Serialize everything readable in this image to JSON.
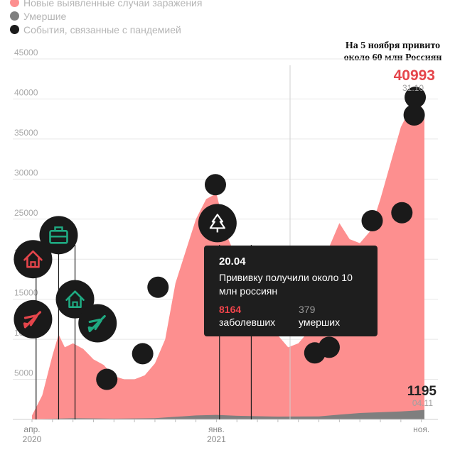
{
  "legend": {
    "cases": "Новые выявленные случаи заражения",
    "deaths": "Умершие",
    "events": "События, связанные с пандемией"
  },
  "note": "На 5 ноября привито около 60 млн Россиян",
  "colors": {
    "cases": "#fd8f8f",
    "deaths": "#7f7f7f",
    "events": "#1a1a1a",
    "accent": "#e5454b",
    "icon_red": "#e5454b",
    "icon_green": "#1faa82",
    "icon_white": "#ffffff"
  },
  "tooltip": {
    "date": "20.04",
    "text": "Прививку получили около 10 млн россиян",
    "cases": "8164",
    "cases_label": "заболевших",
    "deaths": "379",
    "deaths_label": "умерших"
  },
  "chart_data": {
    "type": "area",
    "ylim": [
      0,
      45000
    ],
    "y_ticks": [
      {
        "v": 5000,
        "label": "5000"
      },
      {
        "v": 10000,
        "label": "10000"
      },
      {
        "v": 15000,
        "label": "15000"
      },
      {
        "v": 20000,
        "label": "20000"
      },
      {
        "v": 25000,
        "label": "25000"
      },
      {
        "v": 30000,
        "label": "30000"
      },
      {
        "v": 35000,
        "label": "35000"
      },
      {
        "v": 40000,
        "label": "40000"
      },
      {
        "v": 45000,
        "label": "45000"
      }
    ],
    "x_ticks": [
      {
        "x": 0,
        "label": "апр.",
        "sub": "2020"
      },
      {
        "x": 9,
        "label": "янв.",
        "sub": "2021"
      },
      {
        "x": 19,
        "label": "ноя.",
        "sub": ""
      }
    ],
    "x_range": [
      0,
      19.15
    ],
    "series": [
      {
        "name": "Новые выявленные случаи заражения",
        "x": [
          0,
          0.5,
          1,
          1.3,
          1.6,
          2,
          2.5,
          3,
          3.5,
          4,
          4.5,
          5,
          5.5,
          6,
          6.5,
          7,
          7.5,
          8,
          8.5,
          9,
          9.5,
          10,
          10.5,
          11,
          11.5,
          12,
          12.5,
          13,
          13.5,
          14,
          14.5,
          15,
          15.5,
          16,
          16.5,
          17,
          17.5,
          18,
          18.3,
          18.6,
          19,
          19.15
        ],
        "values": [
          500,
          3000,
          8000,
          10600,
          9000,
          9500,
          8800,
          7500,
          6800,
          5400,
          5000,
          5000,
          5500,
          7000,
          10000,
          17000,
          21000,
          25000,
          27500,
          28200,
          23000,
          20000,
          17000,
          14000,
          11500,
          10500,
          9000,
          9500,
          11000,
          15000,
          21500,
          24500,
          22500,
          22000,
          23500,
          27500,
          32000,
          36500,
          38000,
          40993,
          39000,
          38000
        ]
      },
      {
        "name": "Умершие",
        "x": [
          0,
          2,
          4,
          6,
          8,
          9,
          10,
          12,
          14,
          15,
          16,
          17,
          18,
          19,
          19.15
        ],
        "values": [
          20,
          150,
          100,
          150,
          500,
          570,
          450,
          350,
          380,
          600,
          800,
          900,
          1000,
          1150,
          1195
        ]
      }
    ],
    "labels": {
      "peak_value": "40993",
      "peak_date": "31.10",
      "last_value": "1195",
      "last_date": "04.11"
    },
    "event_lines": [
      0.2,
      1.3,
      2.1,
      9.15,
      10.7
    ],
    "events": [
      {
        "x": 0.05,
        "y": 20000,
        "icon": "house-icon",
        "color": "red"
      },
      {
        "x": 0.05,
        "y": 12500,
        "icon": "plane-icon",
        "color": "red"
      },
      {
        "x": 1.3,
        "y": 23000,
        "icon": "briefcase-icon",
        "color": "green"
      },
      {
        "x": 2.1,
        "y": 15000,
        "icon": "house-icon",
        "color": "green"
      },
      {
        "x": 3.2,
        "y": 12000,
        "icon": "plane-icon",
        "color": "green"
      },
      {
        "x": 3.65,
        "y": 5000,
        "icon": "none",
        "color": ""
      },
      {
        "x": 5.4,
        "y": 8200,
        "icon": "none",
        "color": ""
      },
      {
        "x": 6.15,
        "y": 16500,
        "icon": "none",
        "color": ""
      },
      {
        "x": 8.95,
        "y": 29300,
        "icon": "none",
        "color": ""
      },
      {
        "x": 9.05,
        "y": 24500,
        "icon": "tree-icon",
        "color": "white"
      },
      {
        "x": 13.8,
        "y": 8300,
        "icon": "none",
        "color": ""
      },
      {
        "x": 14.5,
        "y": 9000,
        "icon": "none",
        "color": ""
      },
      {
        "x": 16.6,
        "y": 24800,
        "icon": "none",
        "color": ""
      },
      {
        "x": 18.05,
        "y": 25800,
        "icon": "none",
        "color": ""
      },
      {
        "x": 18.65,
        "y": 38000,
        "icon": "none",
        "color": ""
      },
      {
        "x": 18.7,
        "y": 40200,
        "icon": "none",
        "color": ""
      }
    ],
    "grid": true
  }
}
